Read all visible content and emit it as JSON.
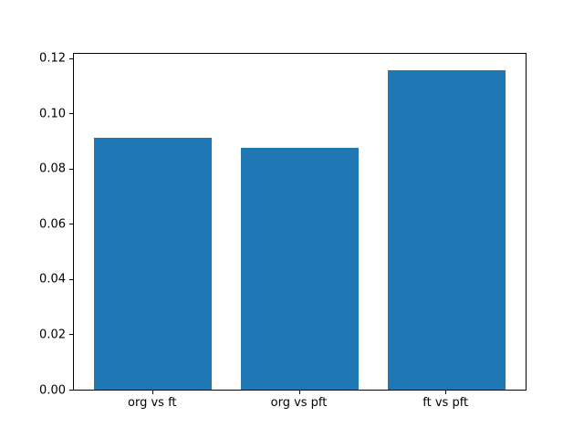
{
  "figure": {
    "background": "#ffffff"
  },
  "chart_data": {
    "type": "bar",
    "title": "",
    "xlabel": "",
    "ylabel": "",
    "categories": [
      "org vs ft",
      "org vs pft",
      "ft vs pft"
    ],
    "values": [
      0.0913,
      0.0877,
      0.1161
    ],
    "bar_color": "#1f77b4",
    "axis_color": "#000000",
    "text_color": "#000000",
    "ylim": [
      0,
      0.1219
    ],
    "xlim": [
      -0.54,
      2.54
    ],
    "bar_width": 0.8,
    "yticks": [
      0,
      0.02,
      0.04,
      0.06,
      0.08,
      0.1,
      0.12
    ],
    "ytick_labels": [
      "0.00",
      "0.02",
      "0.04",
      "0.06",
      "0.08",
      "0.10",
      "0.12"
    ],
    "grid": false,
    "legend": null
  }
}
